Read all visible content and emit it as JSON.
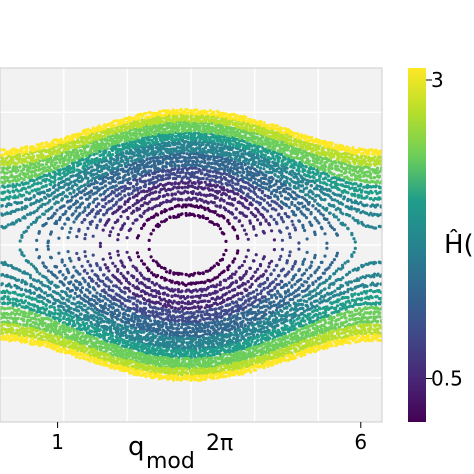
{
  "chart_data": {
    "type": "scatter",
    "title": "",
    "xlabel_main": "q",
    "xlabel_sub": "mod",
    "xlabel_sup": "2π",
    "ylabel": "",
    "x_ticks": [
      {
        "value": 1,
        "label": "1"
      },
      {
        "value": 6,
        "label": "6"
      }
    ],
    "xlim": [
      0.05,
      6.35
    ],
    "ylim": [
      -3.2,
      3.2
    ],
    "grid": true,
    "background": "#f2f2f2",
    "colormap": "viridis",
    "colorbar": {
      "label": "Ĥ(c",
      "range": [
        0.15,
        3.0
      ],
      "ticks": [
        {
          "value": 3,
          "label": "3"
        },
        {
          "value": 0.5,
          "label": "0.5"
        }
      ]
    },
    "description_values": {
      "elliptic_points_x": [
        0.1,
        6.18
      ],
      "hyperbolic_point_x": 3.14,
      "hyperbolic_point_y": 0.0
    }
  },
  "colors": {
    "viridis": [
      "#440154",
      "#482777",
      "#3f4a8a",
      "#31678e",
      "#26838f",
      "#1f9d8a",
      "#6cce5a",
      "#b6de2b",
      "#fee825"
    ]
  }
}
